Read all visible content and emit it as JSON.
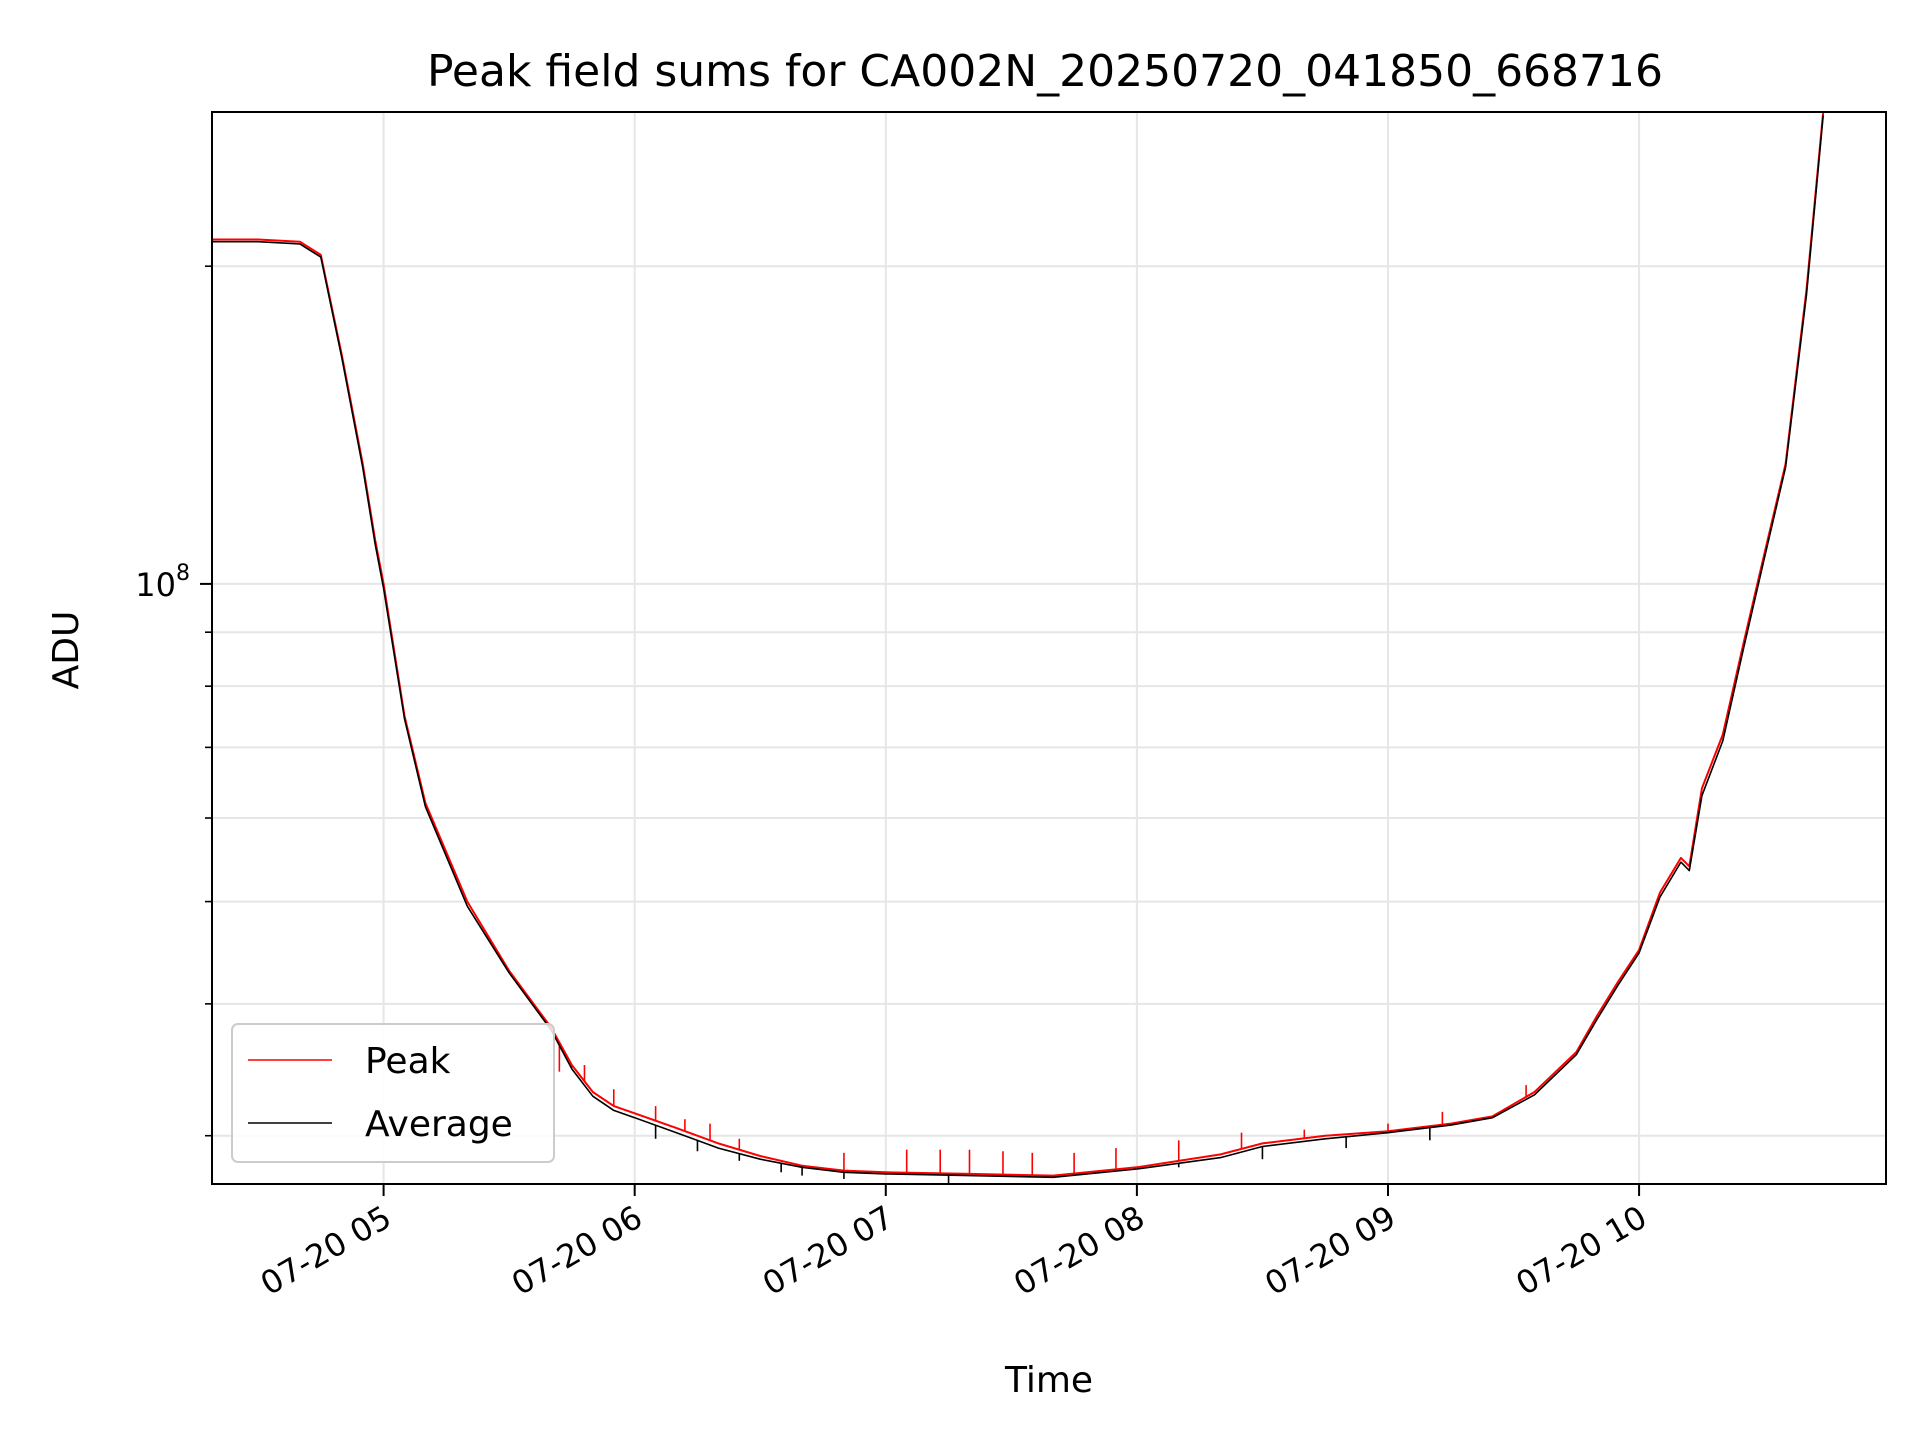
{
  "chart_data": {
    "type": "line",
    "title": "Peak field sums for CA002N_20250720_041850_668716",
    "xlabel": "Time",
    "ylabel": "ADU",
    "yscale": "log",
    "xlim": [
      "2025-07-20 04:19",
      "2025-07-20 10:59"
    ],
    "ylim": [
      27000000,
      280000000
    ],
    "x_ticks": [
      "07-20 05",
      "07-20 06",
      "07-20 07",
      "07-20 08",
      "07-20 09",
      "07-20 10"
    ],
    "x_tick_times": [
      "2025-07-20 05:00",
      "2025-07-20 06:00",
      "2025-07-20 07:00",
      "2025-07-20 08:00",
      "2025-07-20 09:00",
      "2025-07-20 10:00"
    ],
    "y_major_ticks": [
      {
        "value": 100000000,
        "base": "10",
        "exponent": "8"
      }
    ],
    "y_minor_ticks": [
      30000000,
      40000000,
      50000000,
      60000000,
      70000000,
      80000000,
      90000000,
      200000000
    ],
    "grid": true,
    "legend": "lower-left",
    "series": [
      {
        "name": "Peak",
        "color": "#ff0000",
        "x": [
          "2025-07-20 04:19",
          "2025-07-20 04:30",
          "2025-07-20 04:40",
          "2025-07-20 04:45",
          "2025-07-20 04:50",
          "2025-07-20 04:55",
          "2025-07-20 04:58",
          "2025-07-20 05:00",
          "2025-07-20 05:05",
          "2025-07-20 05:10",
          "2025-07-20 05:20",
          "2025-07-20 05:30",
          "2025-07-20 05:40",
          "2025-07-20 05:45",
          "2025-07-20 05:50",
          "2025-07-20 05:55",
          "2025-07-20 06:00",
          "2025-07-20 06:10",
          "2025-07-20 06:20",
          "2025-07-20 06:30",
          "2025-07-20 06:40",
          "2025-07-20 06:50",
          "2025-07-20 07:00",
          "2025-07-20 07:20",
          "2025-07-20 07:40",
          "2025-07-20 08:00",
          "2025-07-20 08:20",
          "2025-07-20 08:30",
          "2025-07-20 08:45",
          "2025-07-20 09:00",
          "2025-07-20 09:15",
          "2025-07-20 09:25",
          "2025-07-20 09:35",
          "2025-07-20 09:45",
          "2025-07-20 09:50",
          "2025-07-20 09:55",
          "2025-07-20 10:00",
          "2025-07-20 10:05",
          "2025-07-20 10:10",
          "2025-07-20 10:12",
          "2025-07-20 10:15",
          "2025-07-20 10:20",
          "2025-07-20 10:25",
          "2025-07-20 10:30",
          "2025-07-20 10:35",
          "2025-07-20 10:40",
          "2025-07-20 10:44"
        ],
        "y": [
          212000000,
          212000000,
          211000000,
          205000000,
          165000000,
          130000000,
          110000000,
          100000000,
          75000000,
          62000000,
          50000000,
          43000000,
          38000000,
          35000000,
          33000000,
          32000000,
          31500000,
          30500000,
          29500000,
          28700000,
          28100000,
          27800000,
          27700000,
          27600000,
          27500000,
          28000000,
          28800000,
          29500000,
          30000000,
          30300000,
          30800000,
          31300000,
          33000000,
          36000000,
          39000000,
          42000000,
          45000000,
          51000000,
          55000000,
          54000000,
          64000000,
          72000000,
          88000000,
          107000000,
          130000000,
          190000000,
          280000000
        ],
        "spikes": [
          [
            "2025-07-20 05:42",
            34500000
          ],
          [
            "2025-07-20 05:45",
            34800000
          ],
          [
            "2025-07-20 05:48",
            35000000
          ],
          [
            "2025-07-20 05:55",
            33200000
          ],
          [
            "2025-07-20 06:05",
            32000000
          ],
          [
            "2025-07-20 06:12",
            31100000
          ],
          [
            "2025-07-20 06:18",
            30800000
          ],
          [
            "2025-07-20 06:25",
            29800000
          ],
          [
            "2025-07-20 06:50",
            28900000
          ],
          [
            "2025-07-20 07:05",
            29100000
          ],
          [
            "2025-07-20 07:13",
            29100000
          ],
          [
            "2025-07-20 07:20",
            29100000
          ],
          [
            "2025-07-20 07:28",
            29000000
          ],
          [
            "2025-07-20 07:35",
            28900000
          ],
          [
            "2025-07-20 07:45",
            28900000
          ],
          [
            "2025-07-20 07:55",
            29200000
          ],
          [
            "2025-07-20 08:10",
            29700000
          ],
          [
            "2025-07-20 08:25",
            30200000
          ],
          [
            "2025-07-20 08:40",
            30400000
          ],
          [
            "2025-07-20 09:00",
            30800000
          ],
          [
            "2025-07-20 09:13",
            31600000
          ],
          [
            "2025-07-20 09:33",
            33500000
          ]
        ]
      },
      {
        "name": "Average",
        "color": "#000000",
        "x": [
          "2025-07-20 04:19",
          "2025-07-20 04:30",
          "2025-07-20 04:40",
          "2025-07-20 04:45",
          "2025-07-20 04:50",
          "2025-07-20 04:55",
          "2025-07-20 04:58",
          "2025-07-20 05:00",
          "2025-07-20 05:05",
          "2025-07-20 05:10",
          "2025-07-20 05:20",
          "2025-07-20 05:30",
          "2025-07-20 05:40",
          "2025-07-20 05:45",
          "2025-07-20 05:50",
          "2025-07-20 05:55",
          "2025-07-20 06:00",
          "2025-07-20 06:10",
          "2025-07-20 06:20",
          "2025-07-20 06:30",
          "2025-07-20 06:40",
          "2025-07-20 06:50",
          "2025-07-20 07:00",
          "2025-07-20 07:20",
          "2025-07-20 07:40",
          "2025-07-20 08:00",
          "2025-07-20 08:20",
          "2025-07-20 08:30",
          "2025-07-20 08:45",
          "2025-07-20 09:00",
          "2025-07-20 09:15",
          "2025-07-20 09:25",
          "2025-07-20 09:35",
          "2025-07-20 09:45",
          "2025-07-20 09:50",
          "2025-07-20 09:55",
          "2025-07-20 10:00",
          "2025-07-20 10:05",
          "2025-07-20 10:10",
          "2025-07-20 10:12",
          "2025-07-20 10:15",
          "2025-07-20 10:20",
          "2025-07-20 10:25",
          "2025-07-20 10:30",
          "2025-07-20 10:35",
          "2025-07-20 10:40",
          "2025-07-20 10:44"
        ],
        "y": [
          211000000,
          211000000,
          210000000,
          204000000,
          164000000,
          129000000,
          109000000,
          99000000,
          74500000,
          61500000,
          49500000,
          42800000,
          37800000,
          34700000,
          32700000,
          31700000,
          31200000,
          30200000,
          29200000,
          28500000,
          28000000,
          27700000,
          27600000,
          27500000,
          27400000,
          27900000,
          28600000,
          29300000,
          29800000,
          30200000,
          30700000,
          31200000,
          32800000,
          35800000,
          38700000,
          41700000,
          44700000,
          50500000,
          54500000,
          53500000,
          63000000,
          71000000,
          87000000,
          106000000,
          129000000,
          188000000,
          278000000
        ],
        "spikes": [
          [
            "2025-07-20 06:05",
            29800000
          ],
          [
            "2025-07-20 06:15",
            29000000
          ],
          [
            "2025-07-20 06:25",
            28400000
          ],
          [
            "2025-07-20 06:35",
            27700000
          ],
          [
            "2025-07-20 06:40",
            27500000
          ],
          [
            "2025-07-20 06:50",
            27300000
          ],
          [
            "2025-07-20 07:15",
            27000000
          ],
          [
            "2025-07-20 08:10",
            28000000
          ],
          [
            "2025-07-20 08:30",
            28500000
          ],
          [
            "2025-07-20 08:50",
            29200000
          ],
          [
            "2025-07-20 09:10",
            29700000
          ]
        ]
      }
    ]
  }
}
